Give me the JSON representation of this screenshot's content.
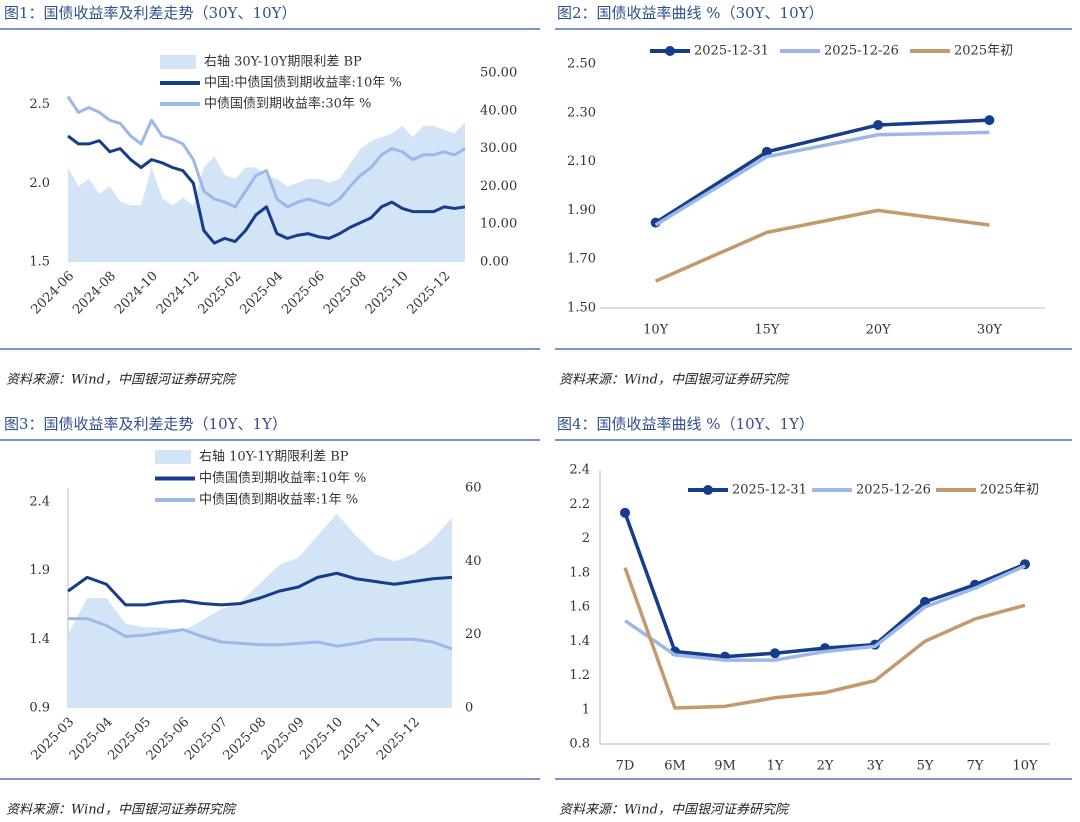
{
  "chart_data": [
    {
      "type": "line",
      "title": "图1：国债收益率及利差走势（30Y、10Y）",
      "source": "资料来源：Wind，中国银河证券研究院",
      "categories": [
        "2024-06",
        null,
        null,
        null,
        "2024-08",
        null,
        null,
        null,
        "2024-10",
        null,
        null,
        null,
        "2024-12",
        null,
        null,
        null,
        "2025-02",
        null,
        null,
        null,
        "2025-04",
        null,
        null,
        null,
        "2025-06",
        null,
        null,
        null,
        "2025-08",
        null,
        null,
        null,
        "2025-10",
        null,
        null,
        null,
        "2025-12",
        null,
        null
      ],
      "ylim": [
        1.5,
        2.7
      ],
      "yticks": [
        1.5,
        {
          "value": 2,
          "label": "2.0"
        },
        2.5
      ],
      "y2lim": [
        0,
        50
      ],
      "y2ticks": [
        {
          "value": 0,
          "label": "0.00"
        },
        {
          "value": 10,
          "label": "10.00"
        },
        {
          "value": 20,
          "label": "20.00"
        },
        {
          "value": 30,
          "label": "30.00"
        },
        {
          "value": 40,
          "label": "40.00"
        },
        {
          "value": 50,
          "label": "50.00"
        }
      ],
      "grid": false,
      "series": [
        {
          "name": "右轴 30Y-10Y期限利差 BP",
          "type": "area",
          "axis": "y2",
          "color": "#d3e4f6",
          "values": [
            25,
            20,
            22,
            18,
            20,
            16,
            15,
            15,
            25,
            17,
            15,
            17,
            15,
            25,
            28,
            23,
            22,
            25,
            25,
            23,
            22,
            20,
            21,
            22,
            22,
            21,
            22,
            26,
            30,
            32,
            33,
            34,
            36,
            33,
            36,
            36,
            35,
            34,
            37
          ]
        },
        {
          "name": "中国:中债国债到期收益率:10年 %",
          "color": "#163c8c",
          "values": [
            2.3,
            2.25,
            2.25,
            2.27,
            2.2,
            2.22,
            2.15,
            2.1,
            2.15,
            2.13,
            2.1,
            2.08,
            2.0,
            1.7,
            1.62,
            1.65,
            1.63,
            1.7,
            1.8,
            1.85,
            1.68,
            1.65,
            1.67,
            1.68,
            1.66,
            1.65,
            1.68,
            1.72,
            1.75,
            1.78,
            1.85,
            1.88,
            1.84,
            1.82,
            1.82,
            1.82,
            1.85,
            1.84,
            1.85
          ]
        },
        {
          "name": "中债国债到期收益率:30年 %",
          "color": "#9db8e8",
          "values": [
            2.55,
            2.45,
            2.48,
            2.45,
            2.4,
            2.38,
            2.3,
            2.25,
            2.4,
            2.3,
            2.28,
            2.25,
            2.15,
            1.95,
            1.9,
            1.88,
            1.85,
            1.95,
            2.05,
            2.08,
            1.9,
            1.85,
            1.88,
            1.9,
            1.88,
            1.86,
            1.9,
            1.98,
            2.05,
            2.1,
            2.18,
            2.22,
            2.2,
            2.15,
            2.18,
            2.18,
            2.2,
            2.18,
            2.22
          ]
        }
      ]
    },
    {
      "type": "line",
      "title": "图2：国债收益率曲线 %（30Y、10Y）",
      "source": "资料来源：Wind，中国银河证券研究院",
      "categories": [
        "10Y",
        "15Y",
        "20Y",
        "30Y"
      ],
      "ylim": [
        1.5,
        2.5
      ],
      "yticks": [
        {
          "value": 1.5,
          "label": "1.50"
        },
        {
          "value": 1.7,
          "label": "1.70"
        },
        {
          "value": 1.9,
          "label": "1.90"
        },
        {
          "value": 2.1,
          "label": "2.10"
        },
        {
          "value": 2.3,
          "label": "2.30"
        },
        {
          "value": 2.5,
          "label": "2.50"
        }
      ],
      "grid": false,
      "series": [
        {
          "name": "2025-12-31",
          "color": "#163c8c",
          "markers": true,
          "values": [
            1.85,
            2.14,
            2.25,
            2.27
          ]
        },
        {
          "name": "2025-12-26",
          "color": "#9db8e8",
          "values": [
            1.84,
            2.12,
            2.21,
            2.22
          ]
        },
        {
          "name": "2025年初",
          "color": "#c49a6c",
          "values": [
            1.61,
            1.81,
            1.9,
            1.84
          ]
        }
      ]
    },
    {
      "type": "line",
      "title": "图3：国债收益率及利差走势（10Y、1Y）",
      "source": "资料来源：Wind，中国银河证券研究院",
      "categories": [
        "2025-03",
        null,
        "2025-04",
        null,
        "2025-05",
        null,
        "2025-06",
        null,
        "2025-07",
        null,
        "2025-08",
        null,
        "2025-09",
        null,
        "2025-10",
        null,
        "2025-11",
        null,
        "2025-12",
        null,
        null
      ],
      "ylim": [
        0.9,
        2.5
      ],
      "yticks": [
        0.9,
        1.4,
        1.9,
        2.4
      ],
      "y2lim": [
        0,
        60
      ],
      "y2ticks": [
        0,
        20,
        40,
        60
      ],
      "grid": false,
      "series": [
        {
          "name": "右轴 10Y-1Y期限利差 BP",
          "type": "area",
          "axis": "y2",
          "color": "#d3e4f6",
          "values": [
            20,
            30,
            30,
            23,
            22,
            22,
            21,
            24,
            27,
            29,
            34,
            39,
            41,
            47,
            53,
            47,
            42,
            40,
            42,
            46,
            52
          ]
        },
        {
          "name": "中债国债到期收益率:10年 %",
          "color": "#163c8c",
          "values": [
            1.75,
            1.85,
            1.8,
            1.65,
            1.65,
            1.67,
            1.68,
            1.66,
            1.65,
            1.66,
            1.7,
            1.75,
            1.78,
            1.85,
            1.88,
            1.84,
            1.82,
            1.8,
            1.82,
            1.84,
            1.85
          ]
        },
        {
          "name": "中债国债到期收益率:1年 %",
          "color": "#9db8e8",
          "values": [
            1.55,
            1.55,
            1.5,
            1.42,
            1.43,
            1.45,
            1.47,
            1.42,
            1.38,
            1.37,
            1.36,
            1.36,
            1.37,
            1.38,
            1.35,
            1.37,
            1.4,
            1.4,
            1.4,
            1.38,
            1.33
          ]
        }
      ]
    },
    {
      "type": "line",
      "title": "图4：国债收益率曲线 %（10Y、1Y）",
      "source": "资料来源：Wind，中国银河证券研究院",
      "categories": [
        "7D",
        "6M",
        "9M",
        "1Y",
        "2Y",
        "3Y",
        "5Y",
        "7Y",
        "10Y"
      ],
      "ylim": [
        0.8,
        2.4
      ],
      "yticks": [
        0.8,
        1,
        1.2,
        1.4,
        1.6,
        1.8,
        2,
        2.2,
        2.4
      ],
      "grid": false,
      "series": [
        {
          "name": "2025-12-31",
          "color": "#163c8c",
          "markers": true,
          "values": [
            2.15,
            1.34,
            1.31,
            1.33,
            1.36,
            1.38,
            1.63,
            1.73,
            1.85
          ]
        },
        {
          "name": "2025-12-26",
          "color": "#9db8e8",
          "values": [
            1.52,
            1.32,
            1.29,
            1.29,
            1.34,
            1.37,
            1.6,
            1.71,
            1.84
          ]
        },
        {
          "name": "2025年初",
          "color": "#c49a6c",
          "values": [
            1.83,
            1.01,
            1.02,
            1.07,
            1.1,
            1.17,
            1.4,
            1.53,
            1.61
          ]
        }
      ]
    }
  ]
}
